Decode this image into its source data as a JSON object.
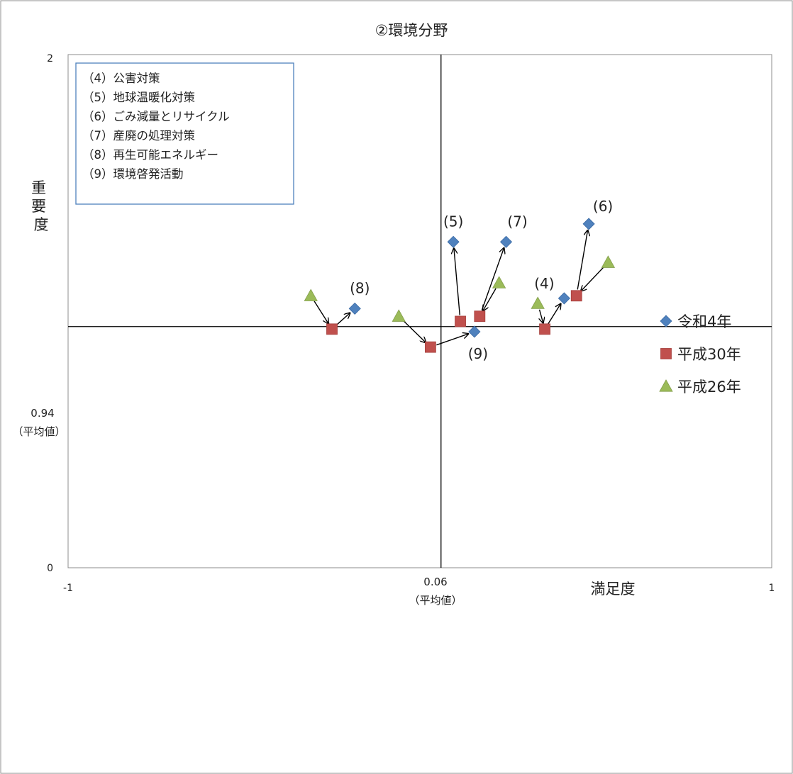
{
  "chart_data": {
    "type": "scatter",
    "title": "②環境分野",
    "xlabel": "満足度",
    "ylabel": "重要度",
    "xlim": [
      -1,
      1
    ],
    "ylim": [
      0,
      2
    ],
    "x_ticks": [
      "-1",
      "1"
    ],
    "y_ticks": [
      "0",
      "2"
    ],
    "x_reference": {
      "value": "0.06",
      "label": "（平均値）"
    },
    "y_reference": {
      "value": "0.94",
      "label": "（平均値）"
    },
    "legend_placement": "right",
    "textbox": [
      "（4）公害対策",
      "（5）地球温暖化対策",
      "（6）ごみ減量とリサイクル",
      "（7）産廃の処理対策",
      "（8）再生可能エネルギー",
      "（9）環境啓発活動"
    ],
    "series": [
      {
        "name": "令和4年",
        "marker": "diamond",
        "color": "#4f81bd",
        "points": [
          {
            "label": "(4)",
            "x": 0.41,
            "y": 1.05
          },
          {
            "label": "(5)",
            "x": 0.095,
            "y": 1.27
          },
          {
            "label": "(6)",
            "x": 0.48,
            "y": 1.34
          },
          {
            "label": "(7)",
            "x": 0.245,
            "y": 1.27
          },
          {
            "label": "(8)",
            "x": -0.185,
            "y": 1.01
          },
          {
            "label": "(9)",
            "x": 0.155,
            "y": 0.92
          }
        ]
      },
      {
        "name": "平成30年",
        "marker": "square",
        "color": "#c0504d",
        "points": [
          {
            "label": "(4)",
            "x": 0.355,
            "y": 0.93
          },
          {
            "label": "(5)",
            "x": 0.115,
            "y": 0.96
          },
          {
            "label": "(6)",
            "x": 0.445,
            "y": 1.06
          },
          {
            "label": "(7)",
            "x": 0.17,
            "y": 0.98
          },
          {
            "label": "(8)",
            "x": -0.25,
            "y": 0.93
          },
          {
            "label": "(9)",
            "x": 0.03,
            "y": 0.86
          }
        ]
      },
      {
        "name": "平成26年",
        "marker": "triangle",
        "color": "#9bbb59",
        "points": [
          {
            "label": "(4)",
            "x": 0.335,
            "y": 1.03
          },
          {
            "label": "(6)",
            "x": 0.535,
            "y": 1.19
          },
          {
            "label": "(7)",
            "x": 0.225,
            "y": 1.11
          },
          {
            "label": "(8)",
            "x": -0.31,
            "y": 1.06
          },
          {
            "label": "(9)",
            "x": -0.06,
            "y": 0.98
          }
        ]
      }
    ]
  }
}
